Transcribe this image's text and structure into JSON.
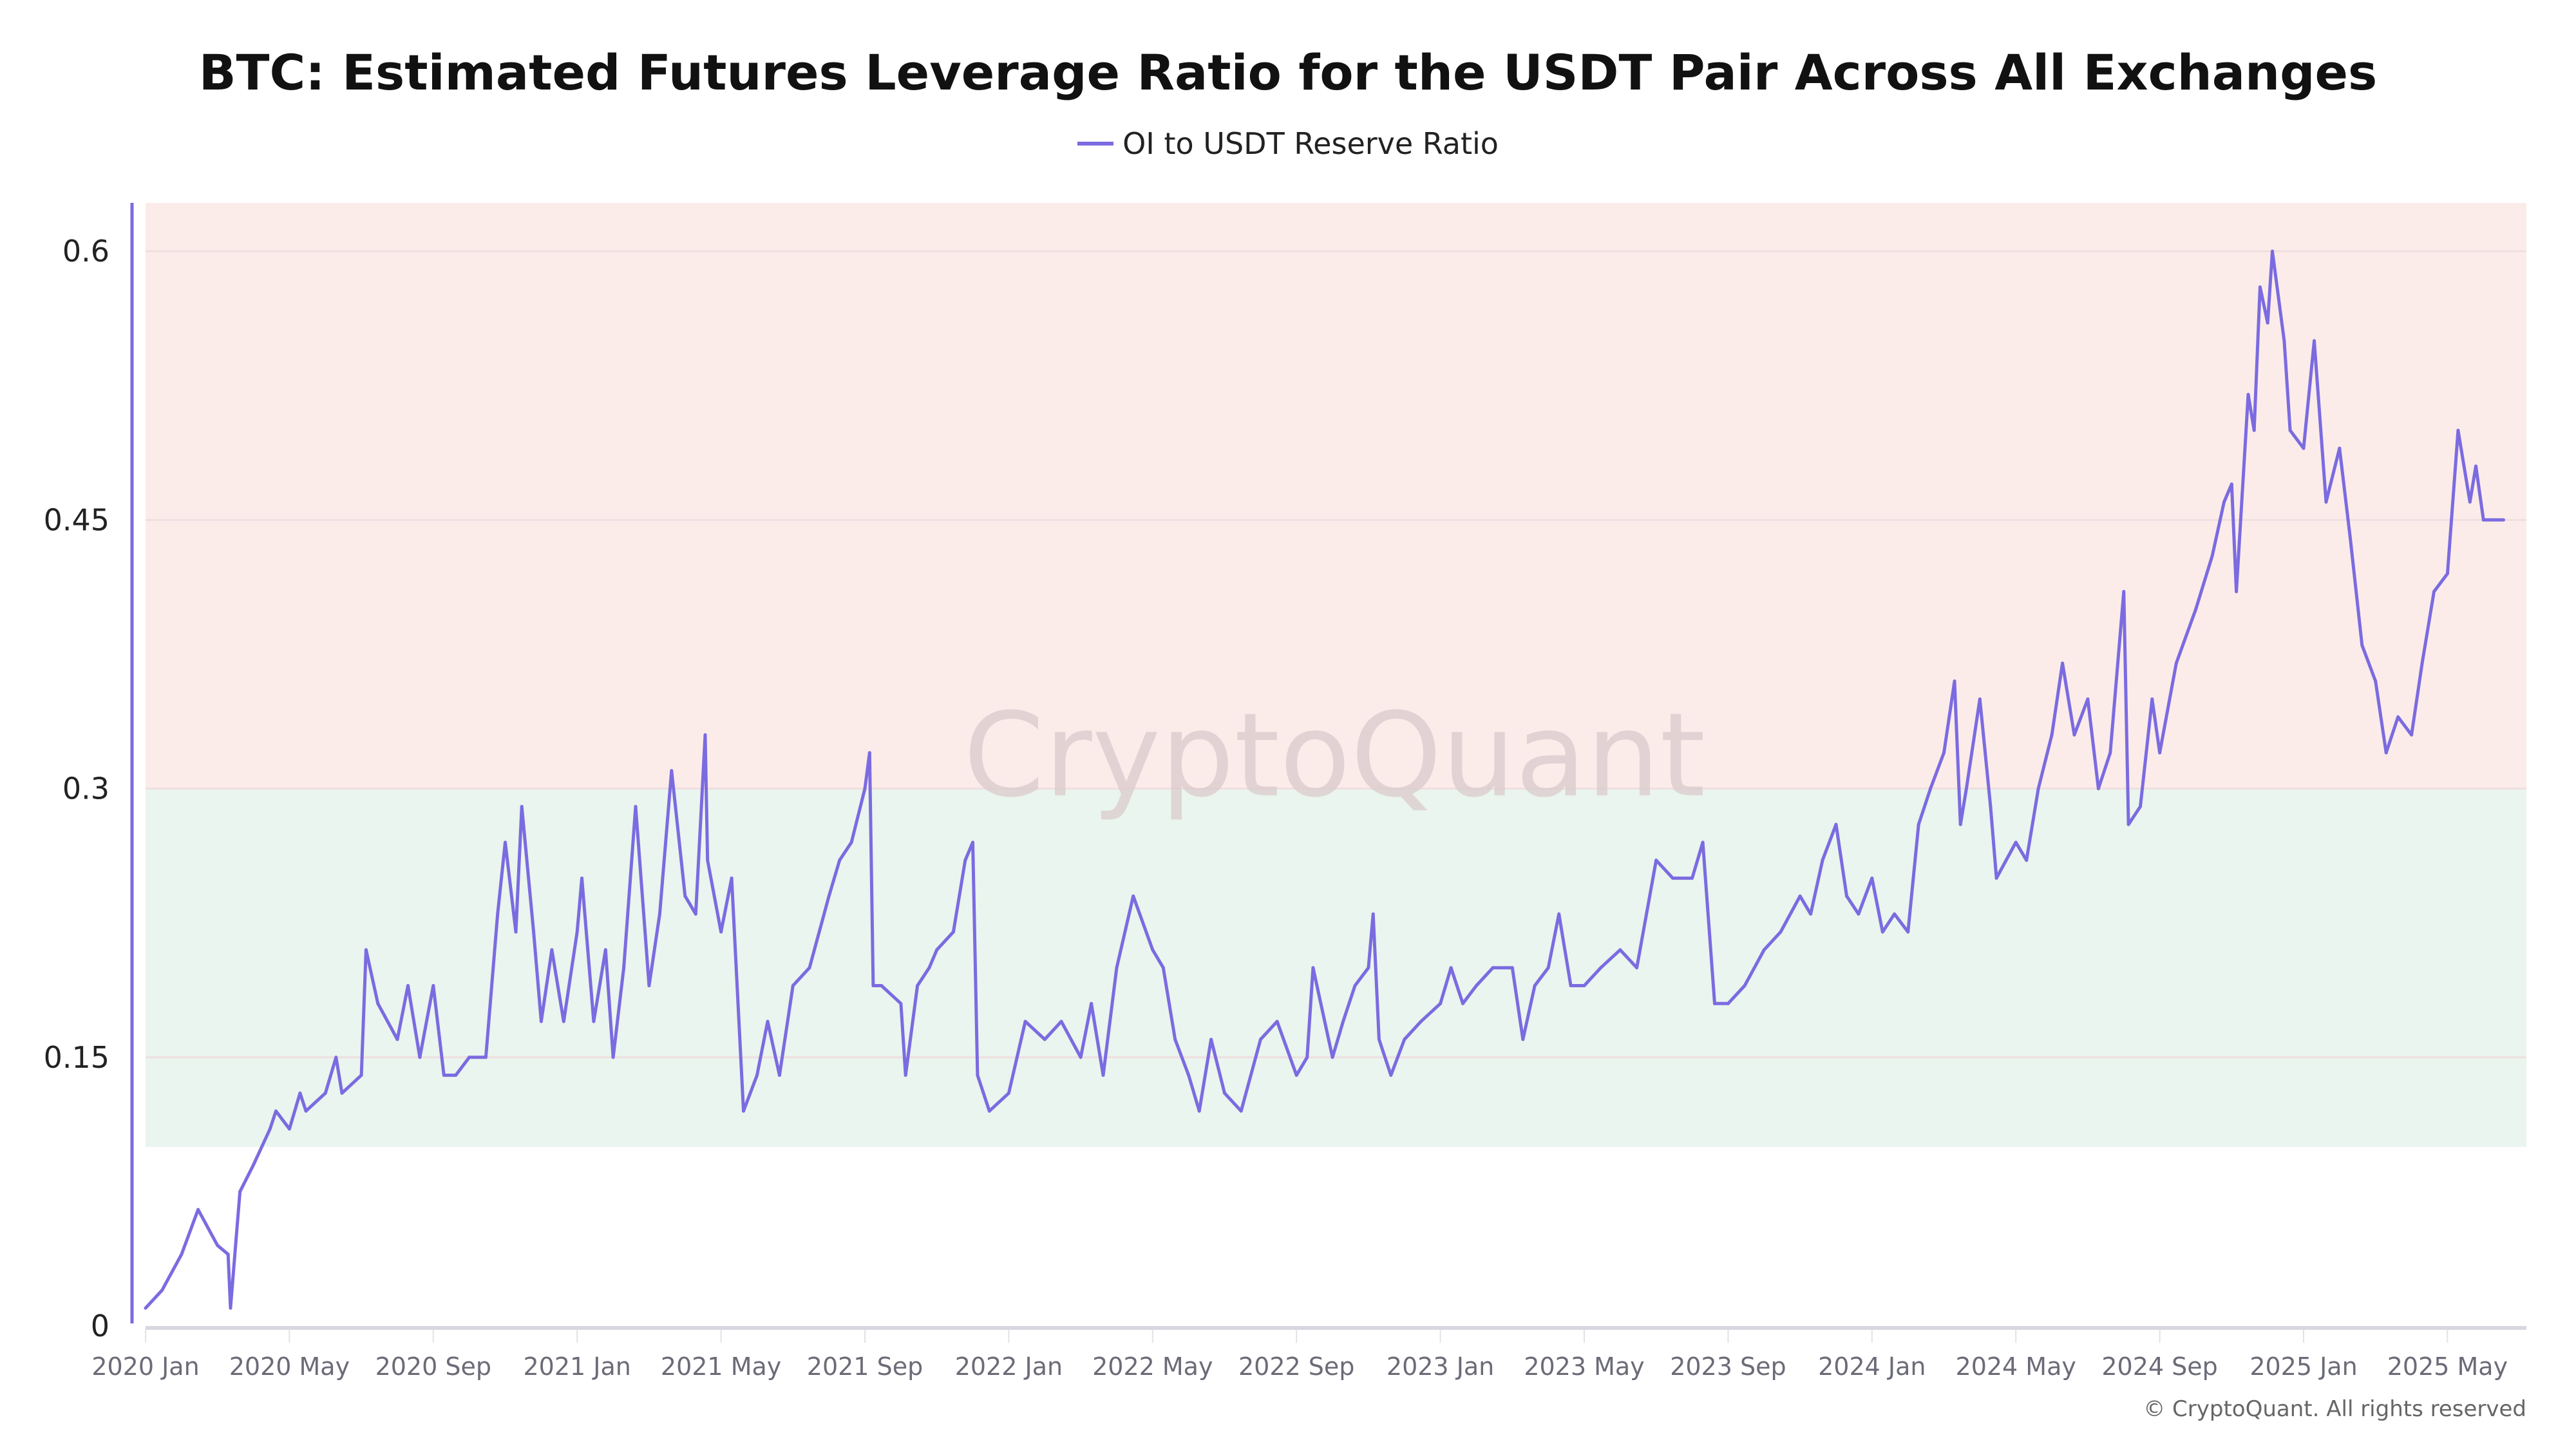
{
  "chart_data": {
    "type": "line",
    "title": "BTC: Estimated Futures Leverage Ratio for the USDT Pair Across All Exchanges",
    "legend_position": "top-center",
    "watermark": "CryptoQuant",
    "footer": "© CryptoQuant. All rights reserved",
    "xlabel": "",
    "ylabel": "",
    "ylim": [
      0,
      0.627
    ],
    "xlim": [
      "2020-01-01",
      "2025-06-30"
    ],
    "grid": true,
    "y_ticks": [
      {
        "value": 0,
        "label": "0"
      },
      {
        "value": 0.15,
        "label": "0.15"
      },
      {
        "value": 0.3,
        "label": "0.3"
      },
      {
        "value": 0.45,
        "label": "0.45"
      },
      {
        "value": 0.6,
        "label": "0.6"
      }
    ],
    "x_ticks": [
      {
        "date": "2020-01-01",
        "label": "2020 Jan"
      },
      {
        "date": "2020-05-01",
        "label": "2020 May"
      },
      {
        "date": "2020-09-01",
        "label": "2020 Sep"
      },
      {
        "date": "2021-01-01",
        "label": "2021 Jan"
      },
      {
        "date": "2021-05-01",
        "label": "2021 May"
      },
      {
        "date": "2021-09-01",
        "label": "2021 Sep"
      },
      {
        "date": "2022-01-01",
        "label": "2022 Jan"
      },
      {
        "date": "2022-05-01",
        "label": "2022 May"
      },
      {
        "date": "2022-09-01",
        "label": "2022 Sep"
      },
      {
        "date": "2023-01-01",
        "label": "2023 Jan"
      },
      {
        "date": "2023-05-01",
        "label": "2023 May"
      },
      {
        "date": "2023-09-01",
        "label": "2023 Sep"
      },
      {
        "date": "2024-01-01",
        "label": "2024 Jan"
      },
      {
        "date": "2024-05-01",
        "label": "2024 May"
      },
      {
        "date": "2024-09-01",
        "label": "2024 Sep"
      },
      {
        "date": "2025-01-01",
        "label": "2025 Jan"
      },
      {
        "date": "2025-05-01",
        "label": "2025 May"
      }
    ],
    "bands": [
      {
        "from": 0.3,
        "to": 0.627,
        "color": "#fbecea"
      },
      {
        "from": 0.1,
        "to": 0.3,
        "color": "#e9f5ee"
      }
    ],
    "series": [
      {
        "name": "OI to USDT Reserve Ratio",
        "color": "#7b6be0",
        "x": [
          "2020-01-01",
          "2020-01-15",
          "2020-02-01",
          "2020-02-15",
          "2020-03-01",
          "2020-03-10",
          "2020-03-12",
          "2020-03-20",
          "2020-04-01",
          "2020-04-15",
          "2020-04-20",
          "2020-05-01",
          "2020-05-10",
          "2020-05-15",
          "2020-06-01",
          "2020-06-10",
          "2020-06-15",
          "2020-07-01",
          "2020-07-05",
          "2020-07-15",
          "2020-08-01",
          "2020-08-10",
          "2020-08-20",
          "2020-09-01",
          "2020-09-10",
          "2020-09-20",
          "2020-10-01",
          "2020-10-15",
          "2020-10-25",
          "2020-11-01",
          "2020-11-10",
          "2020-11-15",
          "2020-11-25",
          "2020-12-01",
          "2020-12-10",
          "2020-12-20",
          "2021-01-01",
          "2021-01-05",
          "2021-01-15",
          "2021-01-25",
          "2021-02-01",
          "2021-02-10",
          "2021-02-20",
          "2021-03-01",
          "2021-03-10",
          "2021-03-20",
          "2021-04-01",
          "2021-04-10",
          "2021-04-18",
          "2021-04-20",
          "2021-05-01",
          "2021-05-10",
          "2021-05-20",
          "2021-06-01",
          "2021-06-10",
          "2021-06-20",
          "2021-07-01",
          "2021-07-15",
          "2021-08-01",
          "2021-08-10",
          "2021-08-20",
          "2021-09-01",
          "2021-09-05",
          "2021-09-08",
          "2021-09-15",
          "2021-10-01",
          "2021-10-05",
          "2021-10-15",
          "2021-10-25",
          "2021-11-01",
          "2021-11-15",
          "2021-11-25",
          "2021-12-01",
          "2021-12-05",
          "2021-12-15",
          "2022-01-01",
          "2022-01-15",
          "2022-02-01",
          "2022-02-15",
          "2022-03-01",
          "2022-03-10",
          "2022-03-20",
          "2022-04-01",
          "2022-04-15",
          "2022-05-01",
          "2022-05-10",
          "2022-05-20",
          "2022-06-01",
          "2022-06-10",
          "2022-06-20",
          "2022-07-01",
          "2022-07-15",
          "2022-08-01",
          "2022-08-15",
          "2022-09-01",
          "2022-09-10",
          "2022-09-15",
          "2022-10-01",
          "2022-10-10",
          "2022-10-20",
          "2022-11-01",
          "2022-11-05",
          "2022-11-10",
          "2022-11-20",
          "2022-12-01",
          "2022-12-15",
          "2023-01-01",
          "2023-01-10",
          "2023-01-20",
          "2023-02-01",
          "2023-02-15",
          "2023-03-01",
          "2023-03-10",
          "2023-03-20",
          "2023-04-01",
          "2023-04-10",
          "2023-04-20",
          "2023-05-01",
          "2023-05-15",
          "2023-06-01",
          "2023-06-15",
          "2023-07-01",
          "2023-07-15",
          "2023-08-01",
          "2023-08-10",
          "2023-08-20",
          "2023-09-01",
          "2023-09-15",
          "2023-10-01",
          "2023-10-15",
          "2023-11-01",
          "2023-11-10",
          "2023-11-20",
          "2023-12-01",
          "2023-12-10",
          "2023-12-20",
          "2024-01-01",
          "2024-01-10",
          "2024-01-20",
          "2024-02-01",
          "2024-02-10",
          "2024-02-20",
          "2024-03-01",
          "2024-03-10",
          "2024-03-15",
          "2024-03-20",
          "2024-04-01",
          "2024-04-10",
          "2024-04-15",
          "2024-05-01",
          "2024-05-10",
          "2024-05-20",
          "2024-06-01",
          "2024-06-10",
          "2024-06-20",
          "2024-07-01",
          "2024-07-10",
          "2024-07-20",
          "2024-08-01",
          "2024-08-05",
          "2024-08-15",
          "2024-08-25",
          "2024-09-01",
          "2024-09-15",
          "2024-10-01",
          "2024-10-15",
          "2024-10-25",
          "2024-11-01",
          "2024-11-05",
          "2024-11-15",
          "2024-11-20",
          "2024-11-25",
          "2024-12-01",
          "2024-12-05",
          "2024-12-15",
          "2024-12-20",
          "2025-01-01",
          "2025-01-10",
          "2025-01-20",
          "2025-02-01",
          "2025-02-10",
          "2025-02-20",
          "2025-03-01",
          "2025-03-10",
          "2025-03-20",
          "2025-04-01",
          "2025-04-10",
          "2025-04-20",
          "2025-05-01",
          "2025-05-10",
          "2025-05-20",
          "2025-05-25",
          "2025-06-01",
          "2025-06-10",
          "2025-06-18"
        ],
        "y": [
          0.01,
          0.02,
          0.04,
          0.065,
          0.045,
          0.04,
          0.01,
          0.075,
          0.09,
          0.11,
          0.12,
          0.11,
          0.13,
          0.12,
          0.13,
          0.15,
          0.13,
          0.14,
          0.21,
          0.18,
          0.16,
          0.19,
          0.15,
          0.19,
          0.14,
          0.14,
          0.15,
          0.15,
          0.23,
          0.27,
          0.22,
          0.29,
          0.22,
          0.17,
          0.21,
          0.17,
          0.22,
          0.25,
          0.17,
          0.21,
          0.15,
          0.2,
          0.29,
          0.19,
          0.23,
          0.31,
          0.24,
          0.23,
          0.33,
          0.26,
          0.22,
          0.25,
          0.12,
          0.14,
          0.17,
          0.14,
          0.19,
          0.2,
          0.24,
          0.26,
          0.27,
          0.3,
          0.32,
          0.19,
          0.19,
          0.18,
          0.14,
          0.19,
          0.2,
          0.21,
          0.22,
          0.26,
          0.27,
          0.14,
          0.12,
          0.13,
          0.17,
          0.16,
          0.17,
          0.15,
          0.18,
          0.14,
          0.2,
          0.24,
          0.21,
          0.2,
          0.16,
          0.14,
          0.12,
          0.16,
          0.13,
          0.12,
          0.16,
          0.17,
          0.14,
          0.15,
          0.2,
          0.15,
          0.17,
          0.19,
          0.2,
          0.23,
          0.16,
          0.14,
          0.16,
          0.17,
          0.18,
          0.2,
          0.18,
          0.19,
          0.2,
          0.2,
          0.16,
          0.19,
          0.2,
          0.23,
          0.19,
          0.19,
          0.2,
          0.21,
          0.2,
          0.26,
          0.25,
          0.25,
          0.27,
          0.18,
          0.18,
          0.19,
          0.21,
          0.22,
          0.24,
          0.23,
          0.26,
          0.28,
          0.24,
          0.23,
          0.25,
          0.22,
          0.23,
          0.22,
          0.28,
          0.3,
          0.32,
          0.36,
          0.28,
          0.3,
          0.35,
          0.29,
          0.25,
          0.27,
          0.26,
          0.3,
          0.33,
          0.37,
          0.33,
          0.35,
          0.3,
          0.32,
          0.41,
          0.28,
          0.29,
          0.35,
          0.32,
          0.37,
          0.4,
          0.43,
          0.46,
          0.47,
          0.41,
          0.52,
          0.5,
          0.58,
          0.56,
          0.6,
          0.55,
          0.5,
          0.49,
          0.55,
          0.46,
          0.49,
          0.44,
          0.38,
          0.36,
          0.32,
          0.34,
          0.33,
          0.37,
          0.41,
          0.42,
          0.5,
          0.46,
          0.48,
          0.45,
          0.45,
          0.45
        ]
      }
    ]
  }
}
